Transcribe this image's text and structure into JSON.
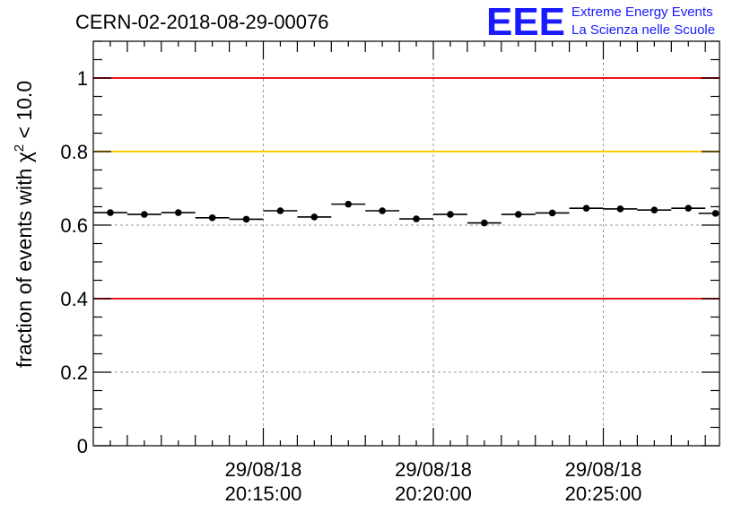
{
  "chart_data": {
    "type": "scatter",
    "title": "CERN-02-2018-08-29-00076",
    "ylabel_main": "fraction of events with ",
    "ylabel_chi": "χ",
    "ylabel_sup": "2",
    "ylabel_tail": " < 10.0",
    "ylim": [
      0,
      1.1
    ],
    "y_ticks": [
      {
        "value": 0,
        "label": "0"
      },
      {
        "value": 0.2,
        "label": "0.2"
      },
      {
        "value": 0.4,
        "label": "0.4"
      },
      {
        "value": 0.6,
        "label": "0.6"
      },
      {
        "value": 0.8,
        "label": "0.8"
      },
      {
        "value": 1,
        "label": "1"
      }
    ],
    "xlim_seconds": [
      0,
      1105
    ],
    "x_time_labels": [
      {
        "seconds": 300,
        "date": "29/08/18",
        "time": "20:15:00"
      },
      {
        "seconds": 600,
        "date": "29/08/18",
        "time": "20:20:00"
      },
      {
        "seconds": 900,
        "date": "29/08/18",
        "time": "20:25:00"
      }
    ],
    "minor_tick_spacing_seconds": 60,
    "bin_width_seconds": 60,
    "grid": true,
    "points": [
      {
        "x": 30,
        "y": 0.634
      },
      {
        "x": 90,
        "y": 0.629
      },
      {
        "x": 150,
        "y": 0.634
      },
      {
        "x": 210,
        "y": 0.62
      },
      {
        "x": 270,
        "y": 0.616
      },
      {
        "x": 330,
        "y": 0.639
      },
      {
        "x": 390,
        "y": 0.622
      },
      {
        "x": 450,
        "y": 0.657
      },
      {
        "x": 510,
        "y": 0.639
      },
      {
        "x": 570,
        "y": 0.617
      },
      {
        "x": 630,
        "y": 0.629
      },
      {
        "x": 690,
        "y": 0.606
      },
      {
        "x": 750,
        "y": 0.629
      },
      {
        "x": 810,
        "y": 0.633
      },
      {
        "x": 870,
        "y": 0.646
      },
      {
        "x": 930,
        "y": 0.644
      },
      {
        "x": 990,
        "y": 0.641
      },
      {
        "x": 1050,
        "y": 0.646
      },
      {
        "x": 1098,
        "y": 0.632
      }
    ],
    "reference_lines": [
      {
        "y": 1.0,
        "color": "#e8141a"
      },
      {
        "y": 0.8,
        "color": "#ffc800"
      },
      {
        "y": 0.4,
        "color": "#e8141a"
      }
    ]
  },
  "logo": {
    "letters": "EEE",
    "line1": "Extreme Energy Events",
    "line2": "La Scienza nelle Scuole",
    "color": "#1a1aff"
  }
}
